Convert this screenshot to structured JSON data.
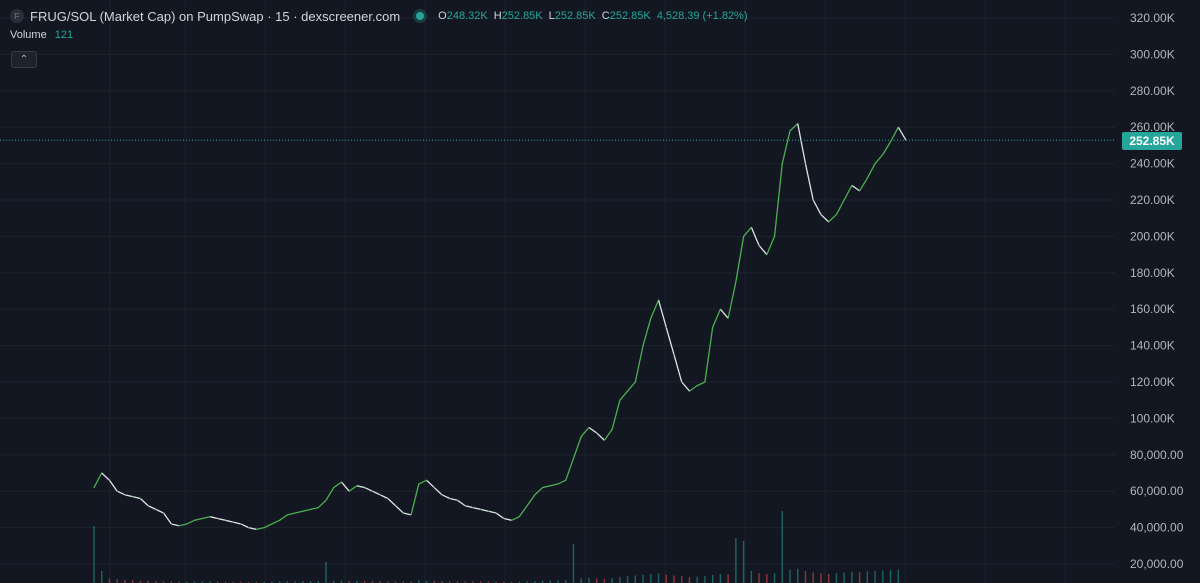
{
  "header": {
    "symbol_icon": "F",
    "title": "FRUG/SOL (Market Cap) on PumpSwap · 15 · dexscreener.com",
    "ohlc": {
      "o_label": "O",
      "o_value": "248.32K",
      "h_label": "H",
      "h_value": "252.85K",
      "l_label": "L",
      "l_value": "252.85K",
      "c_label": "C",
      "c_value": "252.85K",
      "change": "4,528.39 (+1.82%)"
    }
  },
  "volume": {
    "label": "Volume",
    "value": "121"
  },
  "controls": {
    "collapse_icon": "chevron-up-icon",
    "collapse_glyph": "⌃"
  },
  "colors": {
    "background": "#131722",
    "up": "#26a69a",
    "down": "#ef5350",
    "candle_up": "#4caf50",
    "candle_down": "#e0e3eb",
    "grid": "#1e222d",
    "axis_text": "#b2b5be"
  },
  "chart_data": {
    "type": "line",
    "title": "",
    "xlabel": "",
    "ylabel": "",
    "ylim": [
      10000,
      325000
    ],
    "y_ticks": [
      320000,
      300000,
      280000,
      260000,
      240000,
      220000,
      200000,
      180000,
      160000,
      140000,
      120000,
      100000,
      80000,
      60000,
      40000,
      20000
    ],
    "y_tick_labels": [
      "320.00K",
      "300.00K",
      "280.00K",
      "260.00K",
      "240.00K",
      "220.00K",
      "200.00K",
      "180.00K",
      "160.00K",
      "140.00K",
      "120.00K",
      "100.00K",
      "80,000.00",
      "60,000.00",
      "40,000.00",
      "20,000.00"
    ],
    "current_price": 252850,
    "current_price_label": "252.85K",
    "grid": true,
    "series": [
      {
        "values": [
          62000,
          70000,
          66000,
          60000,
          58000,
          57000,
          56000,
          52000,
          50000,
          48000,
          42000,
          41000,
          42000,
          44000,
          45000,
          46000,
          45000,
          44000,
          43000,
          42000,
          40000,
          39000,
          40000,
          42000,
          44000,
          47000,
          48000,
          49000,
          50000,
          51000,
          55000,
          62000,
          65000,
          60000,
          63000,
          62000,
          60000,
          58000,
          56000,
          52000,
          48000,
          47000,
          64000,
          66000,
          62000,
          58000,
          56000,
          55000,
          52000,
          51000,
          50000,
          49000,
          48000,
          45000,
          44000,
          46000,
          52000,
          58000,
          62000,
          63000,
          64000,
          66000,
          78000,
          90000,
          95000,
          92000,
          88000,
          94000,
          110000,
          115000,
          120000,
          140000,
          155000,
          165000,
          150000,
          135000,
          120000,
          115000,
          118000,
          120000,
          150000,
          160000,
          155000,
          175000,
          200000,
          205000,
          195000,
          190000,
          200000,
          240000,
          258000,
          262000,
          240000,
          220000,
          212000,
          208000,
          212000,
          220000,
          228000,
          225000,
          232000,
          240000,
          245000,
          252000,
          260000,
          252850
        ]
      }
    ],
    "volume": [
      38000,
      8000,
      3000,
      2500,
      2000,
      1800,
      1500,
      1500,
      1200,
      1000,
      900,
      800,
      800,
      900,
      900,
      1000,
      900,
      800,
      800,
      700,
      700,
      700,
      800,
      900,
      1000,
      1100,
      1100,
      1200,
      1200,
      1300,
      14000,
      1500,
      1600,
      1400,
      1500,
      1400,
      1300,
      1200,
      1100,
      1000,
      900,
      900,
      1800,
      1500,
      1400,
      1200,
      1100,
      1100,
      1000,
      1000,
      900,
      900,
      900,
      800,
      800,
      900,
      1100,
      1300,
      1500,
      1600,
      1700,
      1900,
      26000,
      3000,
      3500,
      3000,
      2800,
      3200,
      4000,
      4500,
      5000,
      5500,
      6000,
      6500,
      5500,
      5000,
      4500,
      4000,
      4200,
      4500,
      5500,
      6000,
      5800,
      30000,
      28000,
      8000,
      6500,
      6000,
      6500,
      48000,
      9000,
      9500,
      8000,
      7000,
      6500,
      6000,
      6500,
      7000,
      7500,
      7200,
      7800,
      8000,
      8200,
      8500,
      9000,
      121
    ]
  }
}
